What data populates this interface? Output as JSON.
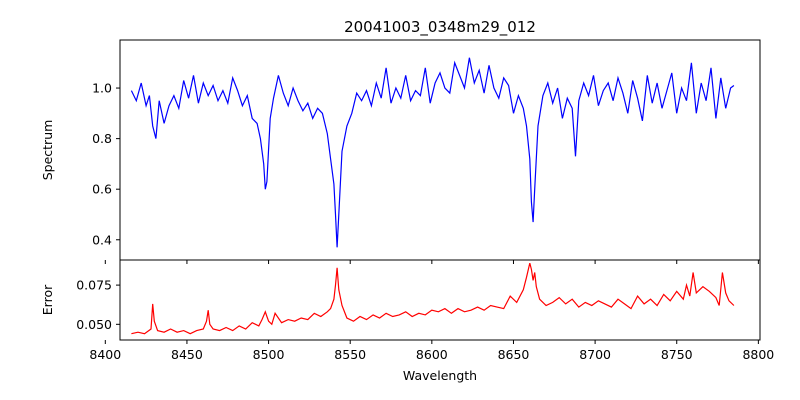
{
  "chart_data": [
    {
      "panel": "top",
      "type": "line",
      "title": "20041003_0348m29_012",
      "xlabel": "",
      "ylabel": "Spectrum",
      "xlim": [
        8409,
        8801
      ],
      "ylim": [
        0.32,
        1.19
      ],
      "x_ticks": [
        8400,
        8450,
        8500,
        8550,
        8600,
        8650,
        8700,
        8750,
        8800
      ],
      "y_ticks": [
        0.4,
        0.6,
        0.8,
        1.0
      ],
      "y_tick_labels": [
        "0.4",
        "0.6",
        "0.8",
        "1.0"
      ],
      "grid": false,
      "series": [
        {
          "color": "#0000ff",
          "x": [
            8416,
            8419,
            8422,
            8425,
            8427,
            8429,
            8431,
            8433,
            8436,
            8439,
            8442,
            8445,
            8448,
            8451,
            8454,
            8457,
            8460,
            8463,
            8466,
            8469,
            8472,
            8475,
            8478,
            8481,
            8484,
            8487,
            8490,
            8493,
            8495,
            8497,
            8498,
            8499,
            8501,
            8503,
            8506,
            8509,
            8512,
            8515,
            8518,
            8521,
            8524,
            8527,
            8530,
            8533,
            8536,
            8538,
            8540,
            8541,
            8542,
            8543,
            8545,
            8548,
            8551,
            8554,
            8557,
            8560,
            8563,
            8566,
            8569,
            8572,
            8575,
            8578,
            8581,
            8584,
            8587,
            8590,
            8593,
            8596,
            8599,
            8602,
            8605,
            8608,
            8611,
            8614,
            8617,
            8620,
            8623,
            8626,
            8629,
            8632,
            8635,
            8638,
            8641,
            8644,
            8647,
            8650,
            8653,
            8656,
            8658,
            8660,
            8661,
            8662,
            8663,
            8665,
            8668,
            8671,
            8674,
            8677,
            8680,
            8683,
            8686,
            8688,
            8690,
            8693,
            8696,
            8699,
            8702,
            8705,
            8708,
            8711,
            8714,
            8717,
            8720,
            8723,
            8726,
            8729,
            8732,
            8735,
            8738,
            8741,
            8744,
            8747,
            8750,
            8753,
            8756,
            8759,
            8762,
            8765,
            8768,
            8771,
            8774,
            8777,
            8780,
            8783,
            8785
          ],
          "y": [
            0.99,
            0.95,
            1.02,
            0.93,
            0.97,
            0.85,
            0.8,
            0.95,
            0.86,
            0.93,
            0.97,
            0.92,
            1.03,
            0.96,
            1.05,
            0.94,
            1.02,
            0.97,
            1.01,
            0.95,
            0.99,
            0.94,
            1.04,
            0.99,
            0.93,
            0.97,
            0.88,
            0.86,
            0.8,
            0.7,
            0.6,
            0.63,
            0.88,
            0.96,
            1.05,
            0.98,
            0.93,
            1.0,
            0.95,
            0.91,
            0.94,
            0.88,
            0.92,
            0.9,
            0.82,
            0.72,
            0.62,
            0.5,
            0.37,
            0.5,
            0.75,
            0.85,
            0.9,
            0.98,
            0.95,
            0.99,
            0.93,
            1.02,
            0.96,
            1.08,
            0.94,
            1.0,
            0.96,
            1.05,
            0.95,
            0.99,
            0.97,
            1.08,
            0.94,
            1.02,
            1.06,
            1.0,
            0.98,
            1.1,
            1.05,
            1.0,
            1.12,
            1.02,
            1.07,
            0.98,
            1.09,
            1.0,
            0.96,
            1.04,
            1.01,
            0.9,
            0.97,
            0.92,
            0.85,
            0.72,
            0.55,
            0.47,
            0.6,
            0.85,
            0.97,
            1.02,
            0.94,
            1.0,
            0.88,
            0.96,
            0.92,
            0.73,
            0.95,
            1.02,
            0.97,
            1.05,
            0.93,
            0.99,
            1.02,
            0.95,
            1.04,
            0.98,
            0.9,
            1.03,
            0.96,
            0.87,
            1.05,
            0.94,
            1.02,
            0.92,
            0.99,
            1.06,
            0.9,
            1.0,
            0.95,
            1.1,
            0.9,
            1.02,
            0.95,
            1.08,
            0.88,
            1.04,
            0.92,
            1.0,
            1.01
          ]
        }
      ]
    },
    {
      "panel": "bottom",
      "type": "line",
      "title": "",
      "xlabel": "Wavelength",
      "ylabel": "Error",
      "xlim": [
        8409,
        8801
      ],
      "ylim": [
        0.04,
        0.091
      ],
      "x_ticks": [
        8400,
        8450,
        8500,
        8550,
        8600,
        8650,
        8700,
        8750,
        8800
      ],
      "x_tick_labels": [
        "8400",
        "8450",
        "8500",
        "8550",
        "8600",
        "8650",
        "8700",
        "8750",
        "8800"
      ],
      "y_ticks": [
        0.05,
        0.075
      ],
      "y_tick_labels": [
        "0.050",
        "0.075"
      ],
      "grid": false,
      "series": [
        {
          "color": "#ff0000",
          "x": [
            8416,
            8420,
            8424,
            8428,
            8429,
            8430,
            8432,
            8436,
            8440,
            8444,
            8448,
            8452,
            8456,
            8460,
            8462,
            8463,
            8464,
            8466,
            8470,
            8474,
            8478,
            8482,
            8486,
            8490,
            8494,
            8496,
            8498,
            8499,
            8500,
            8502,
            8504,
            8508,
            8512,
            8516,
            8520,
            8524,
            8528,
            8532,
            8536,
            8538,
            8540,
            8541,
            8542,
            8543,
            8545,
            8548,
            8552,
            8556,
            8560,
            8564,
            8568,
            8572,
            8576,
            8580,
            8584,
            8588,
            8592,
            8596,
            8600,
            8604,
            8608,
            8612,
            8616,
            8620,
            8624,
            8628,
            8632,
            8636,
            8640,
            8644,
            8648,
            8652,
            8656,
            8658,
            8660,
            8661,
            8662,
            8663,
            8664,
            8666,
            8670,
            8674,
            8678,
            8682,
            8686,
            8690,
            8694,
            8698,
            8702,
            8706,
            8710,
            8714,
            8718,
            8722,
            8726,
            8730,
            8734,
            8738,
            8742,
            8746,
            8750,
            8754,
            8756,
            8758,
            8760,
            8762,
            8766,
            8770,
            8774,
            8776,
            8778,
            8780,
            8782,
            8785
          ],
          "y": [
            0.044,
            0.045,
            0.044,
            0.047,
            0.063,
            0.052,
            0.046,
            0.045,
            0.047,
            0.045,
            0.046,
            0.044,
            0.046,
            0.047,
            0.052,
            0.059,
            0.05,
            0.047,
            0.046,
            0.048,
            0.046,
            0.049,
            0.047,
            0.051,
            0.049,
            0.053,
            0.058,
            0.055,
            0.052,
            0.05,
            0.057,
            0.051,
            0.053,
            0.052,
            0.054,
            0.053,
            0.057,
            0.055,
            0.058,
            0.06,
            0.066,
            0.075,
            0.086,
            0.072,
            0.062,
            0.054,
            0.052,
            0.055,
            0.053,
            0.056,
            0.054,
            0.057,
            0.055,
            0.056,
            0.058,
            0.055,
            0.057,
            0.056,
            0.059,
            0.058,
            0.06,
            0.057,
            0.06,
            0.058,
            0.059,
            0.061,
            0.059,
            0.062,
            0.061,
            0.06,
            0.068,
            0.064,
            0.072,
            0.08,
            0.089,
            0.085,
            0.078,
            0.083,
            0.074,
            0.066,
            0.062,
            0.064,
            0.067,
            0.063,
            0.066,
            0.061,
            0.064,
            0.062,
            0.065,
            0.063,
            0.061,
            0.066,
            0.063,
            0.06,
            0.068,
            0.063,
            0.066,
            0.062,
            0.069,
            0.065,
            0.071,
            0.066,
            0.075,
            0.068,
            0.083,
            0.07,
            0.074,
            0.071,
            0.067,
            0.062,
            0.083,
            0.07,
            0.065,
            0.062
          ]
        }
      ]
    }
  ]
}
